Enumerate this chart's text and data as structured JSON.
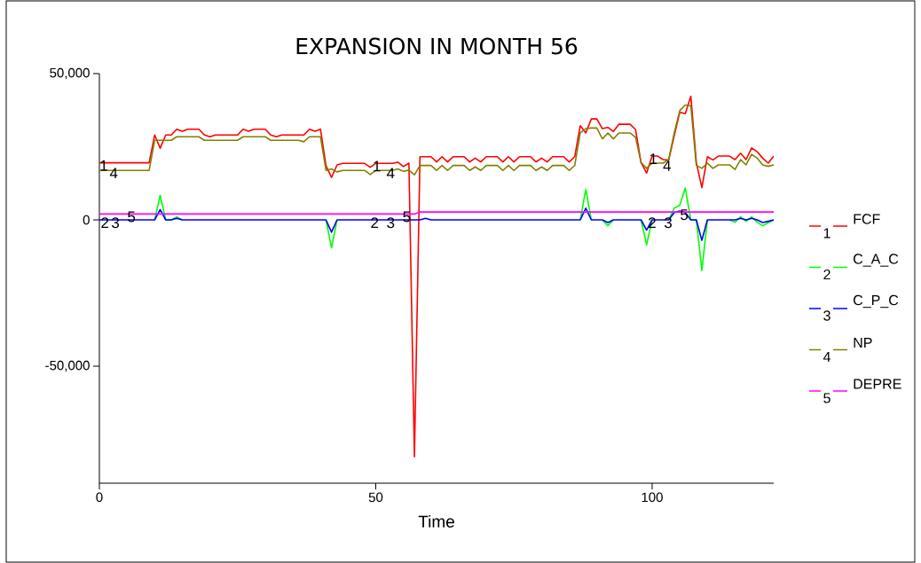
{
  "chart_data": {
    "type": "line",
    "title": "EXPANSION IN MONTH 56",
    "xlabel": "Time",
    "x": [
      0,
      1,
      2,
      3,
      4,
      5,
      6,
      7,
      8,
      9,
      10,
      11,
      12,
      13,
      14,
      15,
      16,
      17,
      18,
      19,
      20,
      21,
      22,
      23,
      24,
      25,
      26,
      27,
      28,
      29,
      30,
      31,
      32,
      33,
      34,
      35,
      36,
      37,
      38,
      39,
      40,
      41,
      42,
      43,
      44,
      45,
      46,
      47,
      48,
      49,
      50,
      51,
      52,
      53,
      54,
      55,
      56,
      57,
      58,
      59,
      60,
      61,
      62,
      63,
      64,
      65,
      66,
      67,
      68,
      69,
      70,
      71,
      72,
      73,
      74,
      75,
      76,
      77,
      78,
      79,
      80,
      81,
      82,
      83,
      84,
      85,
      86,
      87,
      88,
      89,
      90,
      91,
      92,
      93,
      94,
      95,
      96,
      97,
      98,
      99,
      100,
      101,
      102,
      103,
      104,
      105,
      106,
      107,
      108,
      109,
      110,
      111,
      112,
      113,
      114,
      115,
      116,
      117,
      118,
      119,
      120,
      121,
      122
    ],
    "series": [
      {
        "name": "FCF",
        "color": "#ff0000",
        "values": [
          19500,
          19500,
          19500,
          19500,
          19500,
          19500,
          19500,
          19500,
          19500,
          19500,
          29000,
          24500,
          29000,
          29000,
          31000,
          30300,
          31000,
          31000,
          31000,
          29000,
          28400,
          29000,
          29000,
          29000,
          29000,
          29000,
          31000,
          30300,
          31000,
          31000,
          31000,
          29000,
          28400,
          29000,
          29000,
          29000,
          29000,
          29000,
          31000,
          30300,
          31000,
          18500,
          14500,
          18800,
          19300,
          19300,
          19300,
          19300,
          19300,
          18000,
          19300,
          19300,
          19300,
          19300,
          19700,
          18200,
          19400,
          -81000,
          21600,
          21600,
          21600,
          19800,
          21600,
          19800,
          21600,
          21600,
          21600,
          19800,
          21100,
          19800,
          21600,
          21600,
          21600,
          19800,
          21600,
          19800,
          21600,
          21600,
          21600,
          19800,
          21100,
          19800,
          21600,
          21600,
          21600,
          19800,
          21600,
          32200,
          29700,
          34500,
          34500,
          31200,
          31600,
          30200,
          32700,
          32700,
          32700,
          30900,
          19600,
          16000,
          21800,
          21800,
          20600,
          20500,
          28800,
          36800,
          36300,
          42300,
          19600,
          11000,
          21600,
          20500,
          21800,
          21800,
          21800,
          20600,
          22800,
          20600,
          24600,
          23300,
          21100,
          19400,
          21800
        ]
      },
      {
        "name": "C_A_C",
        "color": "#00ff00",
        "values": [
          null,
          null,
          null,
          null,
          null,
          null,
          null,
          null,
          null,
          null,
          0,
          8400,
          0,
          0,
          1000,
          0,
          null,
          null,
          null,
          null,
          null,
          null,
          null,
          null,
          null,
          null,
          null,
          null,
          null,
          null,
          null,
          null,
          null,
          null,
          null,
          null,
          null,
          null,
          null,
          null,
          null,
          0,
          -9600,
          0,
          null,
          null,
          null,
          null,
          null,
          null,
          null,
          null,
          null,
          null,
          null,
          null,
          null,
          null,
          null,
          null,
          null,
          null,
          null,
          null,
          null,
          null,
          null,
          null,
          null,
          null,
          null,
          null,
          null,
          null,
          null,
          null,
          null,
          null,
          null,
          null,
          null,
          null,
          null,
          null,
          null,
          null,
          null,
          0,
          10400,
          0,
          null,
          0,
          -2000,
          0,
          null,
          null,
          null,
          null,
          0,
          -8500,
          0,
          null,
          null,
          0,
          4000,
          5000,
          10900,
          0,
          0,
          -17300,
          0,
          null,
          null,
          null,
          0,
          -800,
          1000,
          -500,
          1000,
          -800,
          -2000,
          -1000,
          0
        ]
      },
      {
        "name": "C_P_C",
        "color": "#0000ff",
        "values": [
          0,
          0,
          0,
          0,
          0,
          0,
          0,
          0,
          0,
          0,
          0,
          3500,
          0,
          0,
          500,
          0,
          0,
          0,
          0,
          0,
          0,
          0,
          0,
          0,
          0,
          0,
          0,
          0,
          0,
          0,
          0,
          0,
          0,
          0,
          0,
          0,
          0,
          0,
          0,
          0,
          0,
          0,
          -4200,
          0,
          0,
          0,
          0,
          0,
          0,
          0,
          0,
          0,
          0,
          0,
          0,
          0,
          0,
          0,
          0,
          500,
          0,
          0,
          0,
          0,
          0,
          0,
          0,
          0,
          0,
          0,
          0,
          0,
          0,
          0,
          0,
          0,
          0,
          0,
          0,
          0,
          0,
          0,
          0,
          0,
          0,
          0,
          0,
          0,
          4000,
          0,
          0,
          0,
          -900,
          0,
          0,
          0,
          0,
          0,
          0,
          -3500,
          0,
          0,
          0,
          0,
          2500,
          3000,
          2500,
          0,
          0,
          -7000,
          0,
          0,
          0,
          0,
          0,
          0,
          500,
          0,
          500,
          0,
          -900,
          -500,
          0
        ]
      },
      {
        "name": "NP",
        "color": "#808000",
        "values": [
          16900,
          16900,
          16900,
          16900,
          16900,
          16900,
          16900,
          16900,
          16900,
          16900,
          27200,
          27200,
          27200,
          27200,
          28400,
          28400,
          28400,
          28400,
          28400,
          27200,
          27200,
          27200,
          27200,
          27200,
          27200,
          27200,
          28400,
          28400,
          28400,
          28400,
          28400,
          27200,
          27200,
          27200,
          27200,
          27200,
          27200,
          26700,
          28400,
          28400,
          28400,
          16900,
          17400,
          16400,
          16900,
          16900,
          16900,
          16900,
          16900,
          15500,
          16900,
          16900,
          16900,
          16900,
          17400,
          16600,
          17000,
          15400,
          18600,
          18600,
          18600,
          16900,
          18600,
          16900,
          18600,
          18600,
          18600,
          16900,
          18100,
          16900,
          18600,
          18600,
          18600,
          16900,
          18600,
          16900,
          18600,
          18600,
          18600,
          16900,
          18100,
          16900,
          18600,
          18600,
          18600,
          16900,
          18600,
          29700,
          31200,
          31400,
          31400,
          27700,
          29700,
          27700,
          29700,
          29700,
          29700,
          28200,
          19600,
          17600,
          19400,
          19400,
          19400,
          20600,
          29700,
          37300,
          39300,
          39000,
          18600,
          17600,
          19400,
          17600,
          18800,
          18800,
          18800,
          17200,
          20600,
          18800,
          22400,
          21100,
          18800,
          18300,
          18800
        ]
      },
      {
        "name": "DEPRE",
        "color": "#ff00ff",
        "values": [
          2000,
          2000,
          2000,
          2000,
          2000,
          2000,
          2000,
          2000,
          2000,
          2000,
          2000,
          2000,
          2000,
          2000,
          2000,
          2000,
          2000,
          2000,
          2000,
          2000,
          2000,
          2000,
          2000,
          2000,
          2000,
          2000,
          2000,
          2000,
          2000,
          2000,
          2000,
          2000,
          2000,
          2000,
          2000,
          2000,
          2000,
          2000,
          2000,
          2000,
          2000,
          2000,
          2000,
          2000,
          2000,
          2000,
          2000,
          2000,
          2000,
          2000,
          2000,
          2000,
          2000,
          2000,
          2000,
          2000,
          2000,
          2000,
          2700,
          2700,
          2700,
          2700,
          2700,
          2700,
          2700,
          2700,
          2700,
          2700,
          2700,
          2700,
          2700,
          2700,
          2700,
          2700,
          2700,
          2700,
          2700,
          2700,
          2700,
          2700,
          2700,
          2700,
          2700,
          2700,
          2700,
          2700,
          2700,
          2700,
          2700,
          2700,
          2700,
          2700,
          2700,
          2700,
          2700,
          2700,
          2700,
          2700,
          2700,
          2700,
          2700,
          2700,
          2700,
          2700,
          2700,
          2700,
          2700,
          2700,
          2700,
          2700,
          2700,
          2700,
          2700,
          2700,
          2700,
          2700,
          2700,
          2700,
          2700,
          2700,
          2700,
          2700,
          2700
        ]
      }
    ],
    "xlim": [
      0,
      122
    ],
    "xticks": [
      0,
      50,
      100
    ],
    "ylim": [
      -90000,
      50000
    ],
    "yticks": [
      {
        "value": -50000,
        "label": "-50,000"
      },
      0,
      {
        "value": 50000,
        "label": "50,000"
      }
    ],
    "legend": "right",
    "annotations": [
      {
        "text": "1",
        "x": 0.8,
        "y": 19500
      },
      {
        "text": "2",
        "x": 1,
        "y": 0
      },
      {
        "text": "3",
        "x": 2.9,
        "y": 0
      },
      {
        "text": "4",
        "x": 2.6,
        "y": 16900
      },
      {
        "text": "5",
        "x": 5.8,
        "y": 2000
      },
      {
        "text": "1",
        "x": 50.2,
        "y": 19300
      },
      {
        "text": "2",
        "x": 49.8,
        "y": 0
      },
      {
        "text": "3",
        "x": 52.7,
        "y": 0
      },
      {
        "text": "4",
        "x": 52.7,
        "y": 16900
      },
      {
        "text": "5",
        "x": 55.6,
        "y": 2000
      },
      {
        "text": "1",
        "x": 100.2,
        "y": 21800
      },
      {
        "text": "2",
        "x": 100,
        "y": 0
      },
      {
        "text": "3",
        "x": 102.9,
        "y": 0
      },
      {
        "text": "4",
        "x": 102.7,
        "y": 19400
      },
      {
        "text": "5",
        "x": 105.8,
        "y": 2700
      }
    ]
  }
}
